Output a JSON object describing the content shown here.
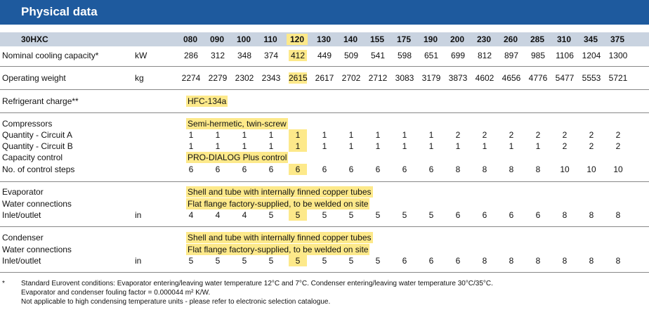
{
  "title": "Physical data",
  "header": {
    "model": "30HXC",
    "sizes": [
      "080",
      "090",
      "100",
      "110",
      "120",
      "130",
      "140",
      "155",
      "175",
      "190",
      "200",
      "230",
      "260",
      "285",
      "310",
      "345",
      "375"
    ]
  },
  "highlight_col": 4,
  "rows": {
    "cooling": {
      "label": "Nominal cooling capacity*",
      "unit": "kW",
      "values": [
        "286",
        "312",
        "348",
        "374",
        "412",
        "449",
        "509",
        "541",
        "598",
        "651",
        "699",
        "812",
        "897",
        "985",
        "1106",
        "1204",
        "1300"
      ]
    },
    "weight": {
      "label": "Operating weight",
      "unit": "kg",
      "values": [
        "2274",
        "2279",
        "2302",
        "2343",
        "2615",
        "2617",
        "2702",
        "2712",
        "3083",
        "3179",
        "3873",
        "4602",
        "4656",
        "4776",
        "5477",
        "5553",
        "5721"
      ]
    },
    "refrigerant": {
      "label": "Refrigerant charge**",
      "value": "HFC-134a"
    },
    "compressors": {
      "label": "Compressors",
      "value": "Semi-hermetic, twin-screw"
    },
    "qty_a": {
      "label": "Quantity - Circuit A",
      "values": [
        "1",
        "1",
        "1",
        "1",
        "1",
        "1",
        "1",
        "1",
        "1",
        "1",
        "2",
        "2",
        "2",
        "2",
        "2",
        "2",
        "2"
      ]
    },
    "qty_b": {
      "label": "Quantity - Circuit B",
      "values": [
        "1",
        "1",
        "1",
        "1",
        "1",
        "1",
        "1",
        "1",
        "1",
        "1",
        "1",
        "1",
        "1",
        "1",
        "2",
        "2",
        "2"
      ]
    },
    "capacity_control": {
      "label": "Capacity control",
      "value": "PRO-DIALOG Plus control"
    },
    "control_steps": {
      "label": "No. of control steps",
      "values": [
        "6",
        "6",
        "6",
        "6",
        "6",
        "6",
        "6",
        "6",
        "6",
        "6",
        "8",
        "8",
        "8",
        "8",
        "10",
        "10",
        "10"
      ]
    },
    "evaporator": {
      "label": "Evaporator",
      "value": "Shell and tube with internally finned copper tubes"
    },
    "evap_water": {
      "label": "Water connections",
      "value": "Flat flange factory-supplied, to be welded on site"
    },
    "evap_inlet": {
      "label": "Inlet/outlet",
      "unit": "in",
      "values": [
        "4",
        "4",
        "4",
        "5",
        "5",
        "5",
        "5",
        "5",
        "5",
        "5",
        "6",
        "6",
        "6",
        "6",
        "8",
        "8",
        "8"
      ]
    },
    "condenser": {
      "label": "Condenser",
      "value": "Shell and tube with internally finned copper tubes"
    },
    "cond_water": {
      "label": "Water connections",
      "value": "Flat flange factory-supplied, to be welded on site"
    },
    "cond_inlet": {
      "label": "Inlet/outlet",
      "unit": "in",
      "values": [
        "5",
        "5",
        "5",
        "5",
        "5",
        "5",
        "5",
        "5",
        "6",
        "6",
        "6",
        "8",
        "8",
        "8",
        "8",
        "8",
        "8"
      ]
    }
  },
  "notes": {
    "star": "*",
    "line1": "Standard Eurovent conditions: Evaporator entering/leaving water temperature 12°C and 7°C. Condenser entering/leaving water temperature 30°C/35°C.",
    "line2": "Evaporator and condenser fouling factor = 0.000044 m² K/W.",
    "line3": "Not applicable to high condensing temperature units - please refer to electronic selection catalogue."
  }
}
